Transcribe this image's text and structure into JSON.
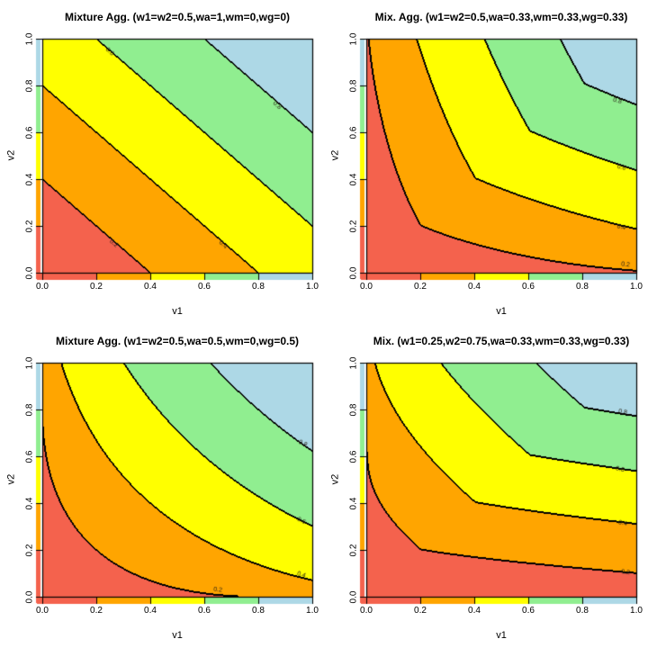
{
  "figure": {
    "background": "#ffffff",
    "description_visible_text_only": true
  },
  "axes": {
    "x_label": "v1",
    "y_label": "v2",
    "x_ticks": [
      "0.0",
      "0.2",
      "0.4",
      "0.6",
      "0.8",
      "1.0"
    ],
    "y_ticks": [
      "0.0",
      "0.2",
      "0.4",
      "0.6",
      "0.8",
      "1.0"
    ],
    "tick_values": [
      0,
      0.2,
      0.4,
      0.6,
      0.8,
      1
    ],
    "xlim": [
      0,
      1
    ],
    "ylim": [
      0,
      1
    ]
  },
  "palette": {
    "band_colors": [
      "#F4624D",
      "#FFA500",
      "#FFFF00",
      "#90EE90",
      "#ADD8E6"
    ],
    "band_names": [
      "red",
      "orange",
      "yellow",
      "lightgreen",
      "lightblue"
    ],
    "band_ranges": [
      "0.0-0.2",
      "0.2-0.4",
      "0.4-0.6",
      "0.6-0.8",
      "0.8-1.0"
    ],
    "contour_line_color": "#000000",
    "contour_label_color": "#262014"
  },
  "chart_data": {
    "type": "heatmap",
    "subtype": "filled-contour-2x2-grid",
    "formula": "f(v1,v2) = wa*(w1*v1 + w2*v2) + wm*min(v1,v2) + wg*(v1^w1 * v2^w2)",
    "levels": [
      0.2,
      0.4,
      0.6,
      0.8
    ],
    "xlabel": "v1",
    "ylabel": "v2",
    "xlim": [
      0,
      1
    ],
    "ylim": [
      0,
      1
    ],
    "axis_rug": "identity color scale along each axis with breaks at 0.2,0.4,0.6,0.8",
    "panels": [
      {
        "id": "top-left",
        "title": "Mixture Agg. (w1=w2=0.5,wa=1,wm=0,wg=0)",
        "params": {
          "w1": 0.5,
          "w2": 0.5,
          "wa": 1,
          "wm": 0,
          "wg": 0
        },
        "contour_labels": [
          {
            "level": "0.2",
            "v1": 0.265,
            "v2": 0.125,
            "angle": 41
          },
          {
            "level": "0.4",
            "v1": 0.67,
            "v2": 0.12,
            "angle": 41
          },
          {
            "level": "0.6",
            "v1": 0.25,
            "v2": 0.945,
            "angle": 41
          },
          {
            "level": "0.8",
            "v1": 0.87,
            "v2": 0.715,
            "angle": 41
          }
        ]
      },
      {
        "id": "top-right",
        "title": "Mix. Agg. (w1=w2=0.5,wa=0.33,wm=0.33,wg=0.33)",
        "params": {
          "w1": 0.5,
          "w2": 0.5,
          "wa": 0.33,
          "wm": 0.33,
          "wg": 0.33
        },
        "contour_labels": [
          {
            "level": "0.2",
            "v1": 0.96,
            "v2": 0.035,
            "angle": 6
          },
          {
            "level": "0.4",
            "v1": 0.945,
            "v2": 0.195,
            "angle": 10
          },
          {
            "level": "0.6",
            "v1": 0.945,
            "v2": 0.45,
            "angle": 14
          },
          {
            "level": "0.8",
            "v1": 0.93,
            "v2": 0.735,
            "angle": 16
          }
        ]
      },
      {
        "id": "bottom-left",
        "title": "Mixture Agg. (w1=w2=0.5,wa=0.5,wm=0,wg=0.5)",
        "params": {
          "w1": 0.5,
          "w2": 0.5,
          "wa": 0.5,
          "wm": 0,
          "wg": 0.5
        },
        "contour_labels": [
          {
            "level": "0.2",
            "v1": 0.65,
            "v2": 0.03,
            "angle": 8
          },
          {
            "level": "0.4",
            "v1": 0.96,
            "v2": 0.095,
            "angle": 18
          },
          {
            "level": "0.6",
            "v1": 0.96,
            "v2": 0.325,
            "angle": 24
          },
          {
            "level": "0.8",
            "v1": 0.965,
            "v2": 0.655,
            "angle": 28
          }
        ]
      },
      {
        "id": "bottom-right",
        "title": "Mix. (w1=0.25,w2=0.75,wa=0.33,wm=0.33,wg=0.33)",
        "params": {
          "w1": 0.25,
          "w2": 0.75,
          "wa": 0.33,
          "wm": 0.33,
          "wg": 0.33
        },
        "contour_labels": [
          {
            "level": "0.2",
            "v1": 0.96,
            "v2": 0.105,
            "angle": 8
          },
          {
            "level": "0.4",
            "v1": 0.95,
            "v2": 0.315,
            "angle": 10
          },
          {
            "level": "0.6",
            "v1": 0.94,
            "v2": 0.545,
            "angle": 12
          },
          {
            "level": "0.8",
            "v1": 0.95,
            "v2": 0.79,
            "angle": 8
          }
        ]
      }
    ]
  }
}
